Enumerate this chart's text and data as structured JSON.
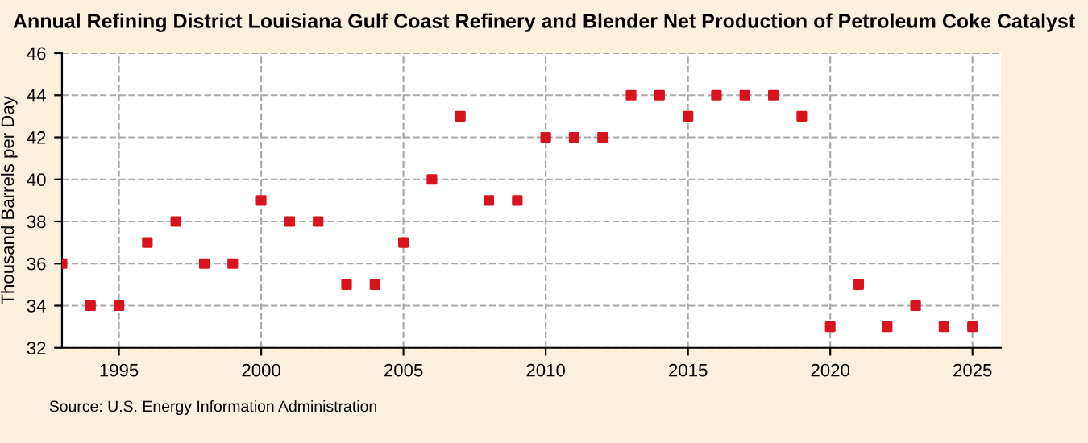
{
  "chart_data": {
    "type": "scatter",
    "title": "Annual Refining District Louisiana Gulf Coast Refinery and Blender Net Production of Petroleum Coke Catalyst",
    "ylabel": "Thousand Barrels per Day",
    "x": [
      1993,
      1994,
      1995,
      1996,
      1997,
      1998,
      1999,
      2000,
      2001,
      2002,
      2003,
      2004,
      2005,
      2006,
      2007,
      2008,
      2009,
      2010,
      2011,
      2012,
      2013,
      2014,
      2015,
      2016,
      2017,
      2018,
      2019,
      2020,
      2021,
      2022,
      2023,
      2024,
      2025
    ],
    "series": [
      {
        "color": "#d7141e",
        "values": [
          36,
          34,
          34,
          37,
          38,
          36,
          36,
          39,
          38,
          38,
          35,
          35,
          37,
          40,
          43,
          39,
          39,
          42,
          42,
          42,
          44,
          44,
          43,
          44,
          44,
          44,
          43,
          33,
          35,
          33,
          34,
          33,
          33
        ]
      }
    ],
    "xlim": [
      1993,
      2026
    ],
    "xticks": [
      1995,
      2000,
      2005,
      2010,
      2015,
      2020,
      2025
    ],
    "ylim": [
      32,
      46
    ],
    "yticks": [
      32,
      34,
      36,
      38,
      40,
      42,
      44,
      46
    ],
    "grid": true,
    "marker": "square",
    "annotations": [
      "Source: U.S. Energy Information Administration"
    ]
  }
}
